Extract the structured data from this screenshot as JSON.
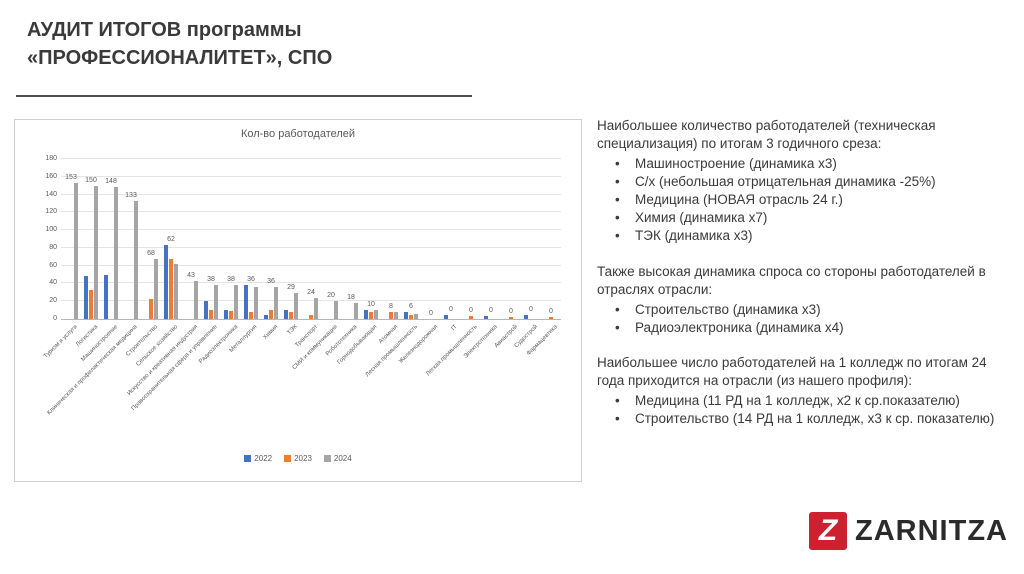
{
  "slide": {
    "title_line1": "АУДИТ ИТОГОВ программы",
    "title_line2": "«ПРОФЕССИОНАЛИТЕТ», СПО"
  },
  "chart_data": {
    "type": "bar",
    "title": "Кол-во работодателей",
    "categories": [
      "Туризм и услуги",
      "Логистика",
      "Машиностроение",
      "Клиническая и профилактическая медицина",
      "Строительство",
      "Сельское хозяйство",
      "Искусство и креативная индустрия",
      "Правоохранительная сфера и управление",
      "Радиоэлектроника",
      "Металлургия",
      "Химия",
      "ТЭК",
      "Транспорт",
      "СМИ и коммуникации",
      "Робототехника",
      "Горнодобывающая",
      "Атомная",
      "Лесная промышленность",
      "Железнодорожная",
      "IT",
      "Легкая промышленность",
      "Электротехника",
      "Авиастрой",
      "Судострой",
      "Фармацевтика"
    ],
    "series": [
      {
        "name": "2022",
        "color": "#4472c4",
        "values": [
          0,
          48,
          50,
          0,
          0,
          83,
          0,
          20,
          10,
          38,
          5,
          10,
          0,
          0,
          0,
          10,
          0,
          8,
          0,
          5,
          0,
          3,
          0,
          5,
          0
        ]
      },
      {
        "name": "2023",
        "color": "#ed7d31",
        "values": [
          0,
          33,
          0,
          0,
          22,
          68,
          0,
          10,
          9,
          8,
          10,
          8,
          5,
          0,
          0,
          8,
          8,
          5,
          0,
          0,
          3,
          0,
          2,
          0,
          2
        ]
      },
      {
        "name": "2024",
        "color": "#a5a5a5",
        "values": [
          153,
          150,
          148,
          133,
          68,
          62,
          43,
          38,
          38,
          36,
          36,
          29,
          24,
          20,
          18,
          10,
          8,
          6,
          0,
          0,
          0,
          0,
          0,
          0,
          0
        ]
      }
    ],
    "data_label_series": "2024",
    "ylim": [
      0,
      180
    ],
    "yticks": [
      0,
      20,
      40,
      60,
      80,
      100,
      120,
      140,
      160,
      180
    ],
    "grid": true,
    "legend_position": "bottom"
  },
  "notes": {
    "blocks": [
      {
        "heading": "Наибольшее количество работодателей (техническая специализация) по итогам 3 годичного среза:",
        "items": [
          "Машиностроение (динамика х3)",
          "С/х (небольшая отрицательная динамика -25%)",
          "Медицина (НОВАЯ отрасль 24 г.)",
          "Химия (динамика х7)",
          "ТЭК (динамика х3)"
        ]
      },
      {
        "heading": "Также высокая динамика спроса со стороны работодателей в отраслях отрасли:",
        "items": [
          "Строительство (динамика х3)",
          "Радиоэлектроника (динамика х4)"
        ]
      },
      {
        "heading": "Наибольшее число работодателей на 1 колледж по итогам 24 года приходится на отрасли (из нашего профиля):",
        "items": [
          "Медицина (11 РД на 1 колледж, х2 к ср.показателю)",
          "Строительство (14 РД на 1 колледж, х3 к ср. показателю)"
        ]
      }
    ]
  },
  "logo": {
    "brand": "ZARNITZA",
    "letter": "Z",
    "color": "#cf202f"
  }
}
